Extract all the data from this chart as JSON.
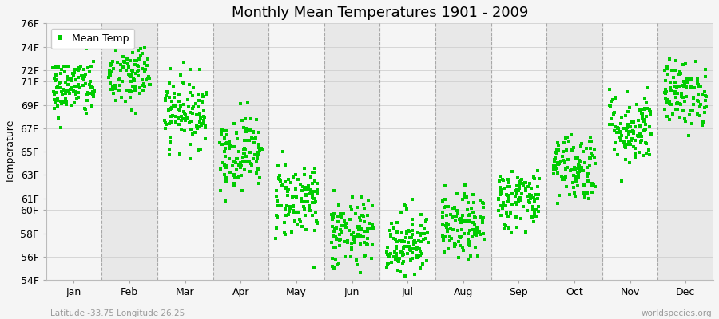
{
  "title": "Monthly Mean Temperatures 1901 - 2009",
  "ylabel": "Temperature",
  "xlabel_labels": [
    "Jan",
    "Feb",
    "Mar",
    "Apr",
    "May",
    "Jun",
    "Jul",
    "Aug",
    "Sep",
    "Oct",
    "Nov",
    "Dec"
  ],
  "bottom_left_text": "Latitude -33.75 Longitude 26.25",
  "bottom_right_text": "worldspecies.org",
  "ylim": [
    54,
    76
  ],
  "yticks": [
    54,
    56,
    58,
    60,
    61,
    63,
    65,
    67,
    69,
    71,
    72,
    74,
    76
  ],
  "ytick_labels": [
    "54F",
    "56F",
    "58F",
    "60F",
    "61F",
    "63F",
    "65F",
    "67F",
    "69F",
    "71F",
    "72F",
    "74F",
    "76F"
  ],
  "dot_color": "#00cc00",
  "dot_size": 5,
  "legend_label": "Mean Temp",
  "background_color": "#f5f5f5",
  "plot_bg_color": "#f5f5f5",
  "alt_band_color": "#e8e8e8",
  "grid_color": "#d0d0d0",
  "dashed_vline_color": "#999999",
  "title_fontsize": 13,
  "axis_fontsize": 9,
  "tick_fontsize": 9,
  "n_years": 109,
  "monthly_means_f": [
    70.5,
    71.5,
    68.5,
    65.0,
    61.0,
    57.8,
    57.2,
    58.5,
    61.0,
    63.8,
    67.0,
    70.0
  ],
  "monthly_stds_f": [
    1.3,
    1.5,
    1.5,
    1.6,
    1.7,
    1.6,
    1.5,
    1.4,
    1.3,
    1.5,
    1.6,
    1.4
  ],
  "seed": 42
}
